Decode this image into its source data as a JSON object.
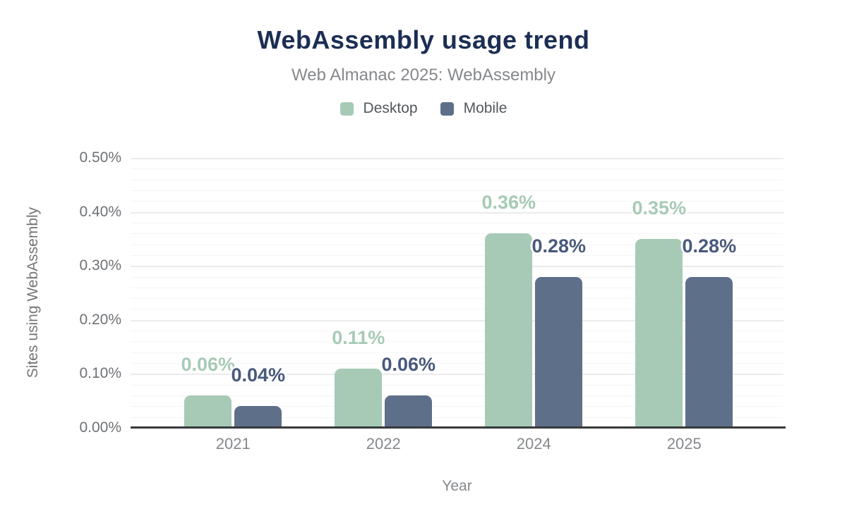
{
  "chart_data": {
    "type": "bar",
    "title": "WebAssembly usage trend",
    "subtitle": "Web Almanac 2025: WebAssembly",
    "xlabel": "Year",
    "ylabel": "Sites using WebAssembly",
    "categories": [
      "2021",
      "2022",
      "2024",
      "2025"
    ],
    "series": [
      {
        "name": "Desktop",
        "color": "#a6cab6",
        "label_color": "#a6cab6",
        "values": [
          0.06,
          0.11,
          0.36,
          0.35
        ],
        "labels": [
          "0.06%",
          "0.11%",
          "0.36%",
          "0.35%"
        ]
      },
      {
        "name": "Mobile",
        "color": "#5e6f8a",
        "label_color": "#48597b",
        "values": [
          0.04,
          0.06,
          0.28,
          0.28
        ],
        "labels": [
          "0.04%",
          "0.06%",
          "0.28%",
          "0.28%"
        ]
      }
    ],
    "ylim": [
      0,
      0.5
    ],
    "y_ticks": [
      {
        "value": 0.0,
        "label": "0.00%"
      },
      {
        "value": 0.1,
        "label": "0.10%"
      },
      {
        "value": 0.2,
        "label": "0.20%"
      },
      {
        "value": 0.3,
        "label": "0.30%"
      },
      {
        "value": 0.4,
        "label": "0.40%"
      },
      {
        "value": 0.5,
        "label": "0.50%"
      }
    ],
    "minor_tick_step": 0.02,
    "grid": true,
    "legend_position": "top"
  },
  "colors": {
    "title": "#1c2e54",
    "subtitle": "#86888b",
    "axis_line": "#38393b",
    "grid_major": "#ebebeb",
    "grid_minor": "#f5f5f5",
    "tick_text": "#6e7175",
    "category_text": "#85888b"
  }
}
